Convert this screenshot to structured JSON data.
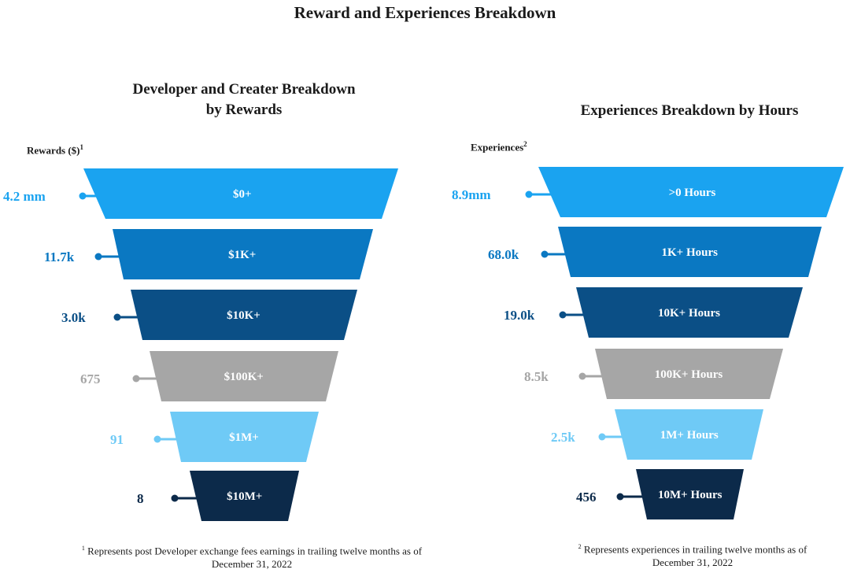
{
  "title": "Reward and Experiences Breakdown",
  "chart_data": [
    {
      "type": "funnel",
      "title": "Developer and Creater Breakdown by Rewards",
      "title_lines": [
        "Developer and Creater Breakdown",
        "by Rewards"
      ],
      "ylabel": "Rewards ($)",
      "ylabel_sup": "1",
      "stages": [
        "$0+",
        "$1K+",
        "$10K+",
        "$100K+",
        "$1M+",
        "$10M+"
      ],
      "values": [
        "4.2 mm",
        "11.7k",
        "3.0k",
        "675",
        "91",
        "8"
      ],
      "colors": [
        "#1aa3f0",
        "#0a78c2",
        "#0b4f86",
        "#a6a6a6",
        "#6fcaf6",
        "#0c2a4a"
      ],
      "footnote_mark": "1",
      "footnote": "Represents post Developer exchange fees earnings in trailing twelve months as of",
      "footnote_line2": "December 31, 2022"
    },
    {
      "type": "funnel",
      "title": "Experiences Breakdown by Hours",
      "title_lines": [
        "Experiences Breakdown by Hours"
      ],
      "ylabel": "Experiences",
      "ylabel_sup": "2",
      "stages": [
        ">0 Hours",
        "1K+ Hours",
        "10K+ Hours",
        "100K+  Hours",
        "1M+ Hours",
        "10M+ Hours"
      ],
      "values": [
        "8.9mm",
        "68.0k",
        "19.0k",
        "8.5k",
        "2.5k",
        "456"
      ],
      "colors": [
        "#1aa3f0",
        "#0a78c2",
        "#0b4f86",
        "#a6a6a6",
        "#6fcaf6",
        "#0c2a4a"
      ],
      "footnote_mark": "2",
      "footnote": "Represents experiences in trailing twelve months as of",
      "footnote_line2": "December 31, 2022"
    }
  ]
}
